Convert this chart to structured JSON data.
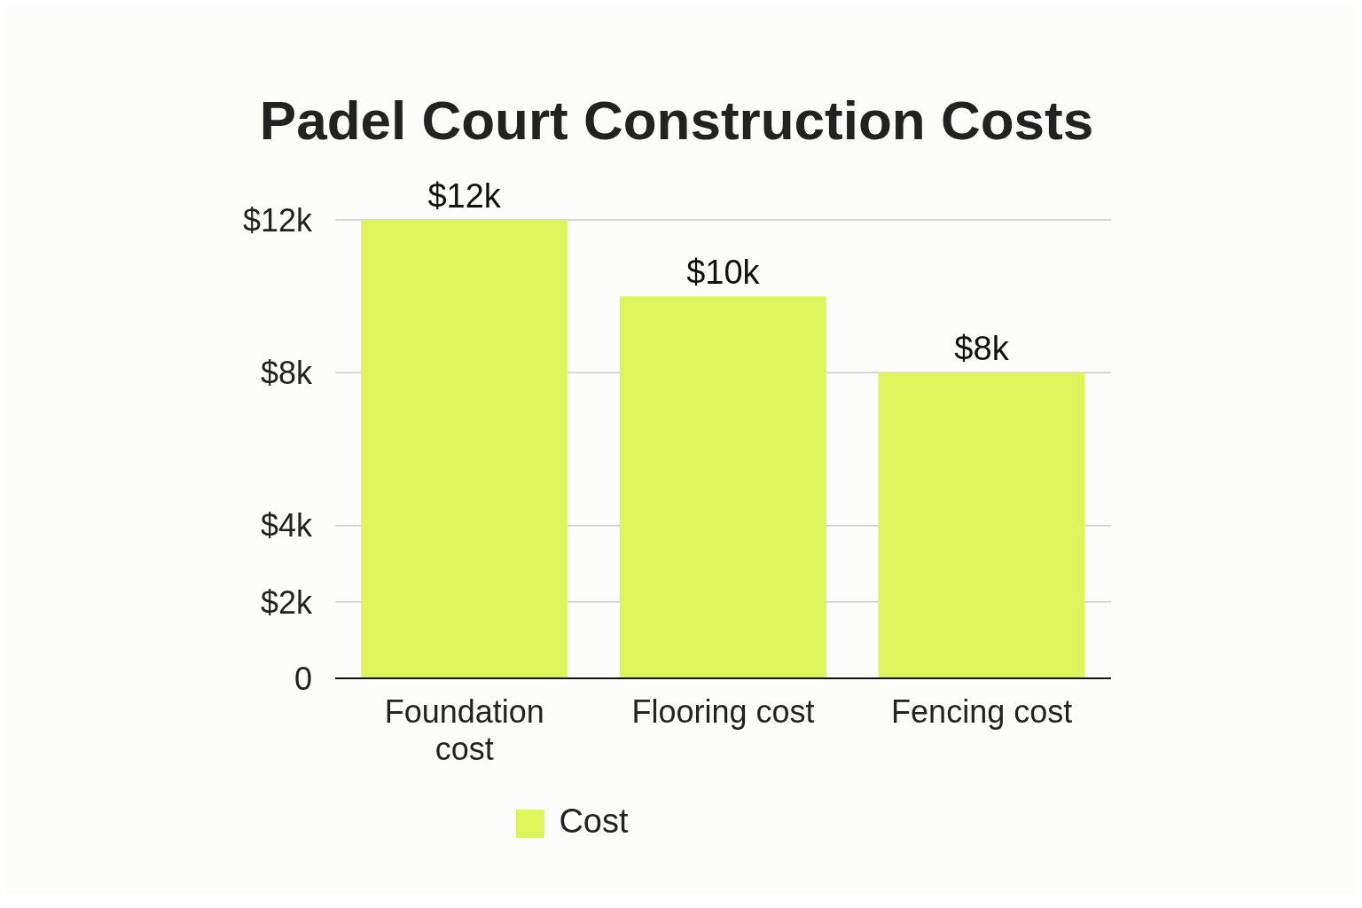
{
  "chart_data": {
    "type": "bar",
    "title": "Padel Court Construction Costs",
    "categories": [
      "Foundation cost",
      "Flooring cost",
      "Fencing cost"
    ],
    "series": [
      {
        "name": "Cost",
        "color": "#ddf55a",
        "values": [
          12000,
          10000,
          8000
        ],
        "value_labels": [
          "$12k",
          "$10k",
          "$8k"
        ]
      }
    ],
    "ylim": [
      0,
      12000
    ],
    "yticks": [
      {
        "value": 0,
        "label": "0"
      },
      {
        "value": 2000,
        "label": "$2k"
      },
      {
        "value": 4000,
        "label": "$4k"
      },
      {
        "value": 8000,
        "label": "$8k"
      },
      {
        "value": 12000,
        "label": "$12k"
      }
    ],
    "grid": "y",
    "legend": "bottom"
  }
}
